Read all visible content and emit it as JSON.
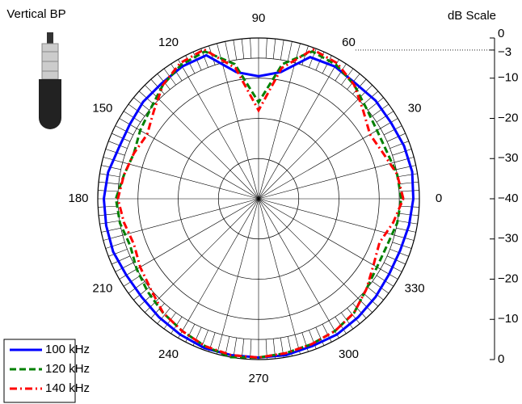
{
  "chart_data": {
    "type": "polar",
    "title": "Vertical BP",
    "scale_title": "dB Scale",
    "rlim": [
      -40,
      0
    ],
    "rgrid": [
      0,
      -5,
      -10,
      -20,
      -30
    ],
    "reference_level": -3,
    "theta_ticks": [
      0,
      30,
      60,
      90,
      120,
      150,
      180,
      210,
      240,
      270,
      300,
      330
    ],
    "scale_ticks_upper": [
      0,
      {
        "value": -3,
        "label": "−3"
      },
      {
        "value": -10,
        "label": "−10"
      },
      {
        "value": -20,
        "label": "−20"
      },
      {
        "value": -30,
        "label": "−30"
      },
      {
        "value": -40,
        "label": "−40"
      }
    ],
    "scale_ticks_lower": [
      {
        "value": -30,
        "label": "−30"
      },
      {
        "value": -20,
        "label": "−20"
      },
      {
        "value": -10,
        "label": "−10"
      },
      0
    ],
    "x": [
      0,
      10,
      20,
      30,
      40,
      50,
      60,
      70,
      80,
      90,
      100,
      110,
      120,
      130,
      140,
      150,
      160,
      170,
      180,
      190,
      200,
      210,
      220,
      230,
      240,
      250,
      260,
      270,
      280,
      290,
      300,
      310,
      320,
      330,
      340,
      350,
      360
    ],
    "series": [
      {
        "name": "100 kHz",
        "color": "#0000ff",
        "dash": "solid",
        "values": [
          -1.5,
          -1.2,
          -1.5,
          -2,
          -2,
          -2.5,
          -2,
          -2.5,
          -8,
          -9.5,
          -8,
          -2,
          -2,
          -2.5,
          -2.5,
          -3,
          -3,
          -2,
          -1.5,
          -1.5,
          -1.5,
          -2,
          -2,
          -1.5,
          -1,
          -0.5,
          -0.5,
          -0.5,
          -0.5,
          -1,
          -1,
          -1.5,
          -2,
          -2.5,
          -2.5,
          -2,
          -1.5
        ]
      },
      {
        "name": "120 kHz",
        "color": "#008000",
        "dash": "dashed",
        "values": [
          -4.5,
          -5,
          -6,
          -6,
          -5,
          -3,
          -1.5,
          -1,
          -6,
          -16,
          -6,
          -1,
          -1.5,
          -3,
          -5,
          -6,
          -7,
          -6,
          -4.5,
          -5,
          -6,
          -5,
          -4,
          -3,
          -2,
          -1,
          0,
          -0.5,
          -1,
          -1.5,
          -2,
          -3,
          -5,
          -6,
          -6,
          -5,
          -4.5
        ]
      },
      {
        "name": "140 kHz",
        "color": "#ff0000",
        "dash": "dashdot",
        "values": [
          -4,
          -5,
          -7,
          -8,
          -6,
          -3,
          -1,
          -0.5,
          -7,
          -18,
          -7,
          -0.5,
          -1,
          -3,
          -6,
          -8,
          -7,
          -6,
          -5,
          -6,
          -7,
          -6,
          -5,
          -3,
          -2,
          -1,
          -0.5,
          -0.5,
          -1,
          -1.5,
          -2,
          -3,
          -5,
          -7,
          -8,
          -6,
          -4
        ]
      }
    ]
  }
}
